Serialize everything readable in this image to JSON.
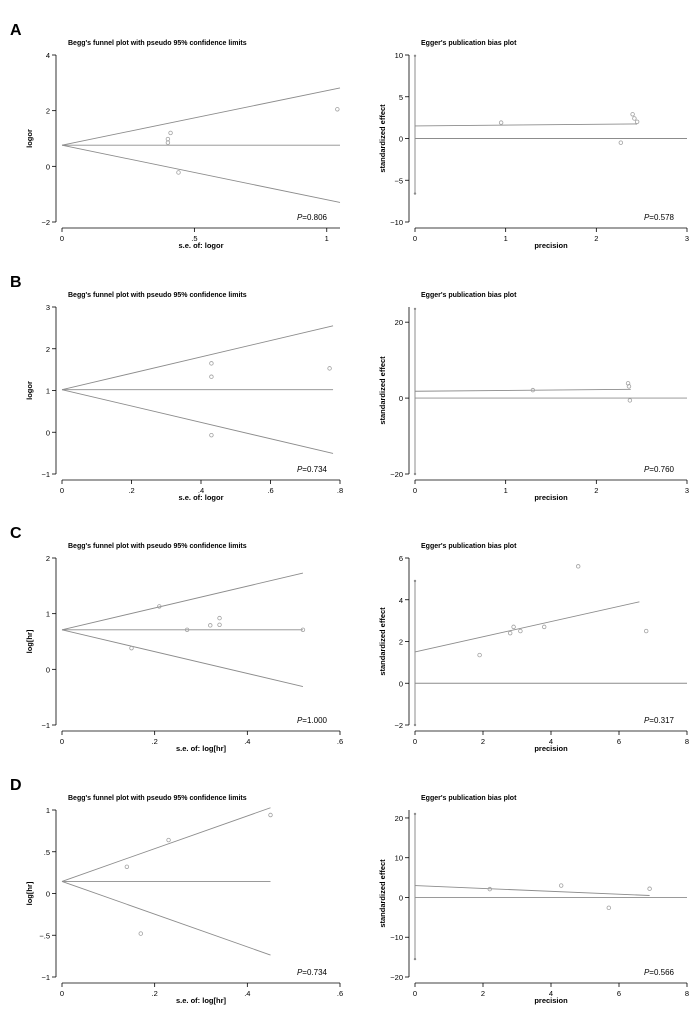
{
  "panel_letters": [
    "A",
    "B",
    "C",
    "D"
  ],
  "colors": {
    "line": "#8c8c8c",
    "point": "#a0a0a0",
    "axis": "#000000",
    "text": "#000000"
  },
  "chart_data": [
    {
      "id": "A-begg",
      "type": "scatter",
      "kind": "begg",
      "title": "Begg's funnel plot with pseudo 95% confidence limits",
      "xlabel": "s.e. of: logor",
      "ylabel": "logor",
      "xlim": [
        0,
        1.05
      ],
      "ylim": [
        -2,
        4
      ],
      "xticks": [
        0,
        0.5,
        1
      ],
      "xtick_labels": [
        "0",
        ".5",
        "1"
      ],
      "yticks": [
        -2,
        0,
        2,
        4
      ],
      "ytick_labels": [
        "−2",
        "0",
        "2",
        "4"
      ],
      "center": 0.76,
      "funnel_to": 1.05,
      "points": [
        [
          0.41,
          1.2
        ],
        [
          0.4,
          0.98
        ],
        [
          0.4,
          0.85
        ],
        [
          0.44,
          -0.22
        ],
        [
          1.04,
          2.05
        ]
      ],
      "p_value": "0.806"
    },
    {
      "id": "A-egger",
      "type": "scatter",
      "kind": "egger",
      "title": "Egger's publication bias plot",
      "xlabel": "precision",
      "ylabel": "standardized effect",
      "xlim": [
        0,
        3
      ],
      "ylim": [
        -10,
        10
      ],
      "xticks": [
        0,
        1,
        2,
        3
      ],
      "xtick_labels": [
        "0",
        "1",
        "2",
        "3"
      ],
      "yticks": [
        -10,
        -5,
        0,
        5,
        10
      ],
      "ytick_labels": [
        "−10",
        "−5",
        "0",
        "5",
        "10"
      ],
      "ci_bar": [
        -6.6,
        9.9
      ],
      "fit_line": [
        [
          0,
          1.5
        ],
        [
          2.45,
          1.75
        ]
      ],
      "points": [
        [
          0.95,
          1.9
        ],
        [
          2.27,
          -0.5
        ],
        [
          2.4,
          2.9
        ],
        [
          2.42,
          2.4
        ],
        [
          2.45,
          2.0
        ]
      ],
      "p_value": "0.578"
    },
    {
      "id": "B-begg",
      "type": "scatter",
      "kind": "begg",
      "title": "Begg's funnel plot with pseudo 95% confidence limits",
      "xlabel": "s.e. of: logor",
      "ylabel": "logor",
      "xlim": [
        0,
        0.8
      ],
      "ylim": [
        -1,
        3
      ],
      "xticks": [
        0,
        0.2,
        0.4,
        0.6,
        0.8
      ],
      "xtick_labels": [
        "0",
        ".2",
        ".4",
        ".6",
        ".8"
      ],
      "yticks": [
        -1,
        0,
        1,
        2,
        3
      ],
      "ytick_labels": [
        "−1",
        "0",
        "1",
        "2",
        "3"
      ],
      "center": 1.02,
      "funnel_to": 0.78,
      "points": [
        [
          0.43,
          1.65
        ],
        [
          0.43,
          1.33
        ],
        [
          0.43,
          -0.07
        ],
        [
          0.77,
          1.53
        ]
      ],
      "p_value": "0.734"
    },
    {
      "id": "B-egger",
      "type": "scatter",
      "kind": "egger",
      "title": "Egger's publication bias plot",
      "xlabel": "precision",
      "ylabel": "standardized effect",
      "xlim": [
        0,
        3
      ],
      "ylim": [
        -20,
        24
      ],
      "xticks": [
        0,
        1,
        2,
        3
      ],
      "xtick_labels": [
        "0",
        "1",
        "2",
        "3"
      ],
      "yticks": [
        -20,
        0,
        20
      ],
      "ytick_labels": [
        "−20",
        "0",
        "20"
      ],
      "ci_bar": [
        -20,
        23.5
      ],
      "fit_line": [
        [
          0,
          1.8
        ],
        [
          2.38,
          2.3
        ]
      ],
      "points": [
        [
          1.3,
          2.1
        ],
        [
          2.35,
          3.9
        ],
        [
          2.36,
          3.1
        ],
        [
          2.37,
          -0.6
        ]
      ],
      "p_value": "0.760"
    },
    {
      "id": "C-begg",
      "type": "scatter",
      "kind": "begg",
      "title": "Begg's funnel plot with pseudo 95% confidence limits",
      "xlabel": "s.e. of: log[hr]",
      "ylabel": "log[hr]",
      "xlim": [
        0,
        0.6
      ],
      "ylim": [
        -1,
        2
      ],
      "xticks": [
        0,
        0.2,
        0.4,
        0.6
      ],
      "xtick_labels": [
        "0",
        ".2",
        ".4",
        ".6"
      ],
      "yticks": [
        -1,
        0,
        1,
        2
      ],
      "ytick_labels": [
        "−1",
        "0",
        "1",
        "2"
      ],
      "center": 0.71,
      "funnel_to": 0.52,
      "points": [
        [
          0.15,
          0.38
        ],
        [
          0.21,
          1.13
        ],
        [
          0.27,
          0.71
        ],
        [
          0.32,
          0.79
        ],
        [
          0.34,
          0.92
        ],
        [
          0.34,
          0.8
        ],
        [
          0.52,
          0.71
        ]
      ],
      "p_value": "1.000"
    },
    {
      "id": "C-egger",
      "type": "scatter",
      "kind": "egger",
      "title": "Egger's publication bias plot",
      "xlabel": "precision",
      "ylabel": "standardized effect",
      "xlim": [
        0,
        8
      ],
      "ylim": [
        -2,
        6
      ],
      "xticks": [
        0,
        2,
        4,
        6,
        8
      ],
      "xtick_labels": [
        "0",
        "2",
        "4",
        "6",
        "8"
      ],
      "yticks": [
        -2,
        0,
        2,
        4,
        6
      ],
      "ytick_labels": [
        "−2",
        "0",
        "2",
        "4",
        "6"
      ],
      "ci_bar": [
        -2,
        4.9
      ],
      "fit_line": [
        [
          0,
          1.5
        ],
        [
          6.6,
          3.9
        ]
      ],
      "points": [
        [
          1.9,
          1.35
        ],
        [
          2.8,
          2.4
        ],
        [
          2.9,
          2.7
        ],
        [
          3.1,
          2.5
        ],
        [
          3.8,
          2.7
        ],
        [
          4.8,
          5.6
        ],
        [
          6.8,
          2.5
        ]
      ],
      "p_value": "0.317"
    },
    {
      "id": "D-begg",
      "type": "scatter",
      "kind": "begg",
      "title": "Begg's funnel plot with pseudo 95% confidence limits",
      "xlabel": "s.e. of: log[hr]",
      "ylabel": "log[hr]",
      "xlim": [
        0,
        0.6
      ],
      "ylim": [
        -1,
        1
      ],
      "xticks": [
        0,
        0.2,
        0.4,
        0.6
      ],
      "xtick_labels": [
        "0",
        ".2",
        ".4",
        ".6"
      ],
      "yticks": [
        -1,
        -0.5,
        0,
        0.5,
        1
      ],
      "ytick_labels": [
        "−1",
        "−.5",
        "0",
        ".5",
        "1"
      ],
      "center": 0.145,
      "funnel_to": 0.45,
      "points": [
        [
          0.14,
          0.32
        ],
        [
          0.17,
          -0.48
        ],
        [
          0.23,
          0.64
        ],
        [
          0.45,
          0.94
        ]
      ],
      "p_value": "0.734"
    },
    {
      "id": "D-egger",
      "type": "scatter",
      "kind": "egger",
      "title": "Egger's publication bias plot",
      "xlabel": "precision",
      "ylabel": "standardized effect",
      "xlim": [
        0,
        8
      ],
      "ylim": [
        -20,
        22
      ],
      "xticks": [
        0,
        2,
        4,
        6,
        8
      ],
      "xtick_labels": [
        "0",
        "2",
        "4",
        "6",
        "8"
      ],
      "yticks": [
        -20,
        -10,
        0,
        10,
        20
      ],
      "ytick_labels": [
        "−20",
        "−10",
        "0",
        "10",
        "20"
      ],
      "ci_bar": [
        -15.5,
        21
      ],
      "fit_line": [
        [
          0,
          3.0
        ],
        [
          6.9,
          0.5
        ]
      ],
      "points": [
        [
          2.2,
          2.1
        ],
        [
          4.3,
          3.0
        ],
        [
          5.7,
          -2.6
        ],
        [
          6.9,
          2.2
        ]
      ],
      "p_value": "0.566"
    }
  ]
}
